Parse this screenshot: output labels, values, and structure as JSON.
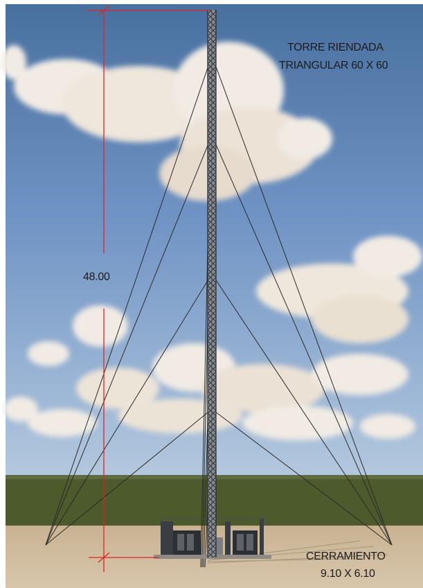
{
  "tower_title": {
    "line1": "TORRE RIENDADA",
    "line2": "TRIANGULAR  60 X 60"
  },
  "height_dimension": "48.00",
  "enclosure": {
    "line1": "CERRAMIENTO",
    "line2": "9.10 X 6.10"
  },
  "colors": {
    "sky_top": "#4d77b6",
    "sky_bottom": "#a9c2dd",
    "grass": "#4c5a2c",
    "ground": "#cdb89a",
    "dimension_line": "#e02424",
    "guy_wire": "#2a2a2a",
    "text": "#1c1c1c"
  }
}
